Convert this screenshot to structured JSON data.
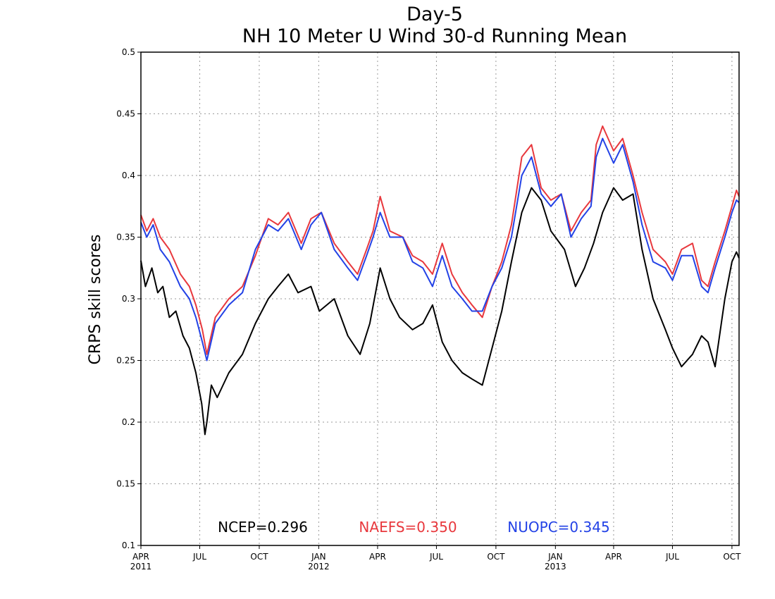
{
  "chart_data": {
    "type": "line",
    "title": "Day-5",
    "subtitle": "NH 10 Meter U Wind 30-d Running Mean",
    "ylabel": "CRPS skill scores",
    "xlabel": "",
    "xlim": [
      "2011-04-01",
      "2013-10-12"
    ],
    "ylim": [
      0.1,
      0.5
    ],
    "grid": true,
    "legend_position": "bottom-center",
    "y_ticks": [
      {
        "value": 0.1,
        "label": "0.1"
      },
      {
        "value": 0.15,
        "label": "0.15"
      },
      {
        "value": 0.2,
        "label": "0.2"
      },
      {
        "value": 0.25,
        "label": "0.25"
      },
      {
        "value": 0.3,
        "label": "0.3"
      },
      {
        "value": 0.35,
        "label": "0.35"
      },
      {
        "value": 0.4,
        "label": "0.4"
      },
      {
        "value": 0.45,
        "label": "0.45"
      },
      {
        "value": 0.5,
        "label": "0.5"
      }
    ],
    "x_ticks": [
      {
        "date": "2011-04-01",
        "label": "APR",
        "year": "2011"
      },
      {
        "date": "2011-07-01",
        "label": "JUL",
        "year": ""
      },
      {
        "date": "2011-10-01",
        "label": "OCT",
        "year": ""
      },
      {
        "date": "2012-01-01",
        "label": "JAN",
        "year": "2012"
      },
      {
        "date": "2012-04-01",
        "label": "APR",
        "year": ""
      },
      {
        "date": "2012-07-01",
        "label": "JUL",
        "year": ""
      },
      {
        "date": "2012-10-01",
        "label": "OCT",
        "year": ""
      },
      {
        "date": "2013-01-01",
        "label": "JAN",
        "year": "2013"
      },
      {
        "date": "2013-04-01",
        "label": "APR",
        "year": ""
      },
      {
        "date": "2013-07-01",
        "label": "JUL",
        "year": ""
      },
      {
        "date": "2013-10-01",
        "label": "OCT",
        "year": ""
      }
    ],
    "series": [
      {
        "name": "NCEP",
        "color": "#000000",
        "legend_label": "NCEP=0.296",
        "x": [
          "2011-04-01",
          "2011-04-08",
          "2011-04-18",
          "2011-04-27",
          "2011-05-05",
          "2011-05-15",
          "2011-05-25",
          "2011-06-05",
          "2011-06-15",
          "2011-06-25",
          "2011-07-04",
          "2011-07-09",
          "2011-07-12",
          "2011-07-19",
          "2011-07-28",
          "2011-08-15",
          "2011-09-05",
          "2011-09-25",
          "2011-10-15",
          "2011-10-30",
          "2011-11-15",
          "2011-11-30",
          "2011-12-20",
          "2012-01-02",
          "2012-01-25",
          "2012-02-15",
          "2012-03-05",
          "2012-03-20",
          "2012-04-05",
          "2012-04-20",
          "2012-05-05",
          "2012-05-25",
          "2012-06-10",
          "2012-06-25",
          "2012-07-10",
          "2012-07-25",
          "2012-08-10",
          "2012-08-25",
          "2012-09-10",
          "2012-09-25",
          "2012-10-10",
          "2012-10-25",
          "2012-11-10",
          "2012-11-25",
          "2012-12-10",
          "2012-12-25",
          "2013-01-15",
          "2013-02-01",
          "2013-02-15",
          "2013-03-01",
          "2013-03-15",
          "2013-04-01",
          "2013-04-15",
          "2013-05-01",
          "2013-05-15",
          "2013-06-01",
          "2013-06-20",
          "2013-07-01",
          "2013-07-15",
          "2013-08-01",
          "2013-08-15",
          "2013-08-25",
          "2013-09-05",
          "2013-09-20",
          "2013-10-01",
          "2013-10-08",
          "2013-10-12"
        ],
        "y": [
          0.331,
          0.31,
          0.325,
          0.305,
          0.31,
          0.285,
          0.29,
          0.27,
          0.26,
          0.24,
          0.215,
          0.19,
          0.2,
          0.23,
          0.22,
          0.24,
          0.255,
          0.28,
          0.3,
          0.31,
          0.32,
          0.305,
          0.31,
          0.29,
          0.3,
          0.27,
          0.255,
          0.28,
          0.325,
          0.3,
          0.285,
          0.275,
          0.28,
          0.295,
          0.265,
          0.25,
          0.24,
          0.235,
          0.23,
          0.26,
          0.29,
          0.33,
          0.37,
          0.39,
          0.38,
          0.355,
          0.34,
          0.31,
          0.325,
          0.345,
          0.37,
          0.39,
          0.38,
          0.385,
          0.34,
          0.3,
          0.275,
          0.26,
          0.245,
          0.255,
          0.27,
          0.265,
          0.245,
          0.3,
          0.33,
          0.338,
          0.333
        ]
      },
      {
        "name": "NAEFS",
        "color": "#e8383d",
        "legend_label": "NAEFS=0.350",
        "x": [
          "2011-04-01",
          "2011-04-10",
          "2011-04-20",
          "2011-05-01",
          "2011-05-15",
          "2011-06-01",
          "2011-06-15",
          "2011-06-25",
          "2011-07-05",
          "2011-07-12",
          "2011-07-25",
          "2011-08-15",
          "2011-09-05",
          "2011-09-25",
          "2011-10-15",
          "2011-10-30",
          "2011-11-15",
          "2011-12-05",
          "2011-12-20",
          "2012-01-05",
          "2012-01-25",
          "2012-02-15",
          "2012-03-01",
          "2012-03-15",
          "2012-03-25",
          "2012-04-05",
          "2012-04-20",
          "2012-05-10",
          "2012-05-25",
          "2012-06-10",
          "2012-06-25",
          "2012-07-10",
          "2012-07-25",
          "2012-08-10",
          "2012-08-25",
          "2012-09-10",
          "2012-09-25",
          "2012-10-10",
          "2012-10-25",
          "2012-11-10",
          "2012-11-25",
          "2012-12-10",
          "2012-12-25",
          "2013-01-10",
          "2013-01-25",
          "2013-02-10",
          "2013-02-25",
          "2013-03-05",
          "2013-03-15",
          "2013-04-01",
          "2013-04-15",
          "2013-05-01",
          "2013-05-15",
          "2013-06-01",
          "2013-06-20",
          "2013-07-01",
          "2013-07-15",
          "2013-08-01",
          "2013-08-15",
          "2013-08-25",
          "2013-09-05",
          "2013-09-20",
          "2013-10-01",
          "2013-10-08",
          "2013-10-12"
        ],
        "y": [
          0.368,
          0.355,
          0.365,
          0.35,
          0.34,
          0.32,
          0.31,
          0.295,
          0.275,
          0.255,
          0.285,
          0.3,
          0.31,
          0.335,
          0.365,
          0.36,
          0.37,
          0.345,
          0.365,
          0.37,
          0.345,
          0.33,
          0.32,
          0.34,
          0.355,
          0.383,
          0.355,
          0.35,
          0.335,
          0.33,
          0.32,
          0.345,
          0.32,
          0.305,
          0.295,
          0.285,
          0.31,
          0.33,
          0.36,
          0.415,
          0.425,
          0.39,
          0.38,
          0.385,
          0.355,
          0.37,
          0.38,
          0.425,
          0.44,
          0.42,
          0.43,
          0.4,
          0.37,
          0.34,
          0.33,
          0.32,
          0.34,
          0.345,
          0.315,
          0.31,
          0.33,
          0.355,
          0.375,
          0.388,
          0.383
        ]
      },
      {
        "name": "NUOPC",
        "color": "#2342e6",
        "legend_label": "NUOPC=0.345",
        "x": [
          "2011-04-01",
          "2011-04-10",
          "2011-04-20",
          "2011-05-01",
          "2011-05-15",
          "2011-06-01",
          "2011-06-15",
          "2011-06-25",
          "2011-07-05",
          "2011-07-12",
          "2011-07-25",
          "2011-08-15",
          "2011-09-05",
          "2011-09-25",
          "2011-10-15",
          "2011-10-30",
          "2011-11-15",
          "2011-12-05",
          "2011-12-20",
          "2012-01-05",
          "2012-01-25",
          "2012-02-15",
          "2012-03-01",
          "2012-03-15",
          "2012-03-25",
          "2012-04-05",
          "2012-04-20",
          "2012-05-10",
          "2012-05-25",
          "2012-06-10",
          "2012-06-25",
          "2012-07-10",
          "2012-07-25",
          "2012-08-10",
          "2012-08-25",
          "2012-09-10",
          "2012-09-25",
          "2012-10-10",
          "2012-10-25",
          "2012-11-10",
          "2012-11-25",
          "2012-12-10",
          "2012-12-25",
          "2013-01-10",
          "2013-01-25",
          "2013-02-10",
          "2013-02-25",
          "2013-03-05",
          "2013-03-15",
          "2013-04-01",
          "2013-04-15",
          "2013-05-01",
          "2013-05-15",
          "2013-06-01",
          "2013-06-20",
          "2013-07-01",
          "2013-07-15",
          "2013-08-01",
          "2013-08-15",
          "2013-08-25",
          "2013-09-05",
          "2013-09-20",
          "2013-10-01",
          "2013-10-08",
          "2013-10-12"
        ],
        "y": [
          0.362,
          0.35,
          0.36,
          0.34,
          0.33,
          0.31,
          0.3,
          0.285,
          0.265,
          0.25,
          0.28,
          0.295,
          0.305,
          0.34,
          0.36,
          0.355,
          0.365,
          0.34,
          0.36,
          0.37,
          0.34,
          0.325,
          0.315,
          0.335,
          0.35,
          0.37,
          0.35,
          0.35,
          0.33,
          0.325,
          0.31,
          0.335,
          0.31,
          0.3,
          0.29,
          0.29,
          0.31,
          0.325,
          0.35,
          0.4,
          0.415,
          0.385,
          0.375,
          0.385,
          0.35,
          0.365,
          0.375,
          0.415,
          0.43,
          0.41,
          0.425,
          0.395,
          0.36,
          0.33,
          0.325,
          0.315,
          0.335,
          0.335,
          0.31,
          0.305,
          0.325,
          0.35,
          0.37,
          0.38,
          0.378
        ]
      }
    ]
  }
}
